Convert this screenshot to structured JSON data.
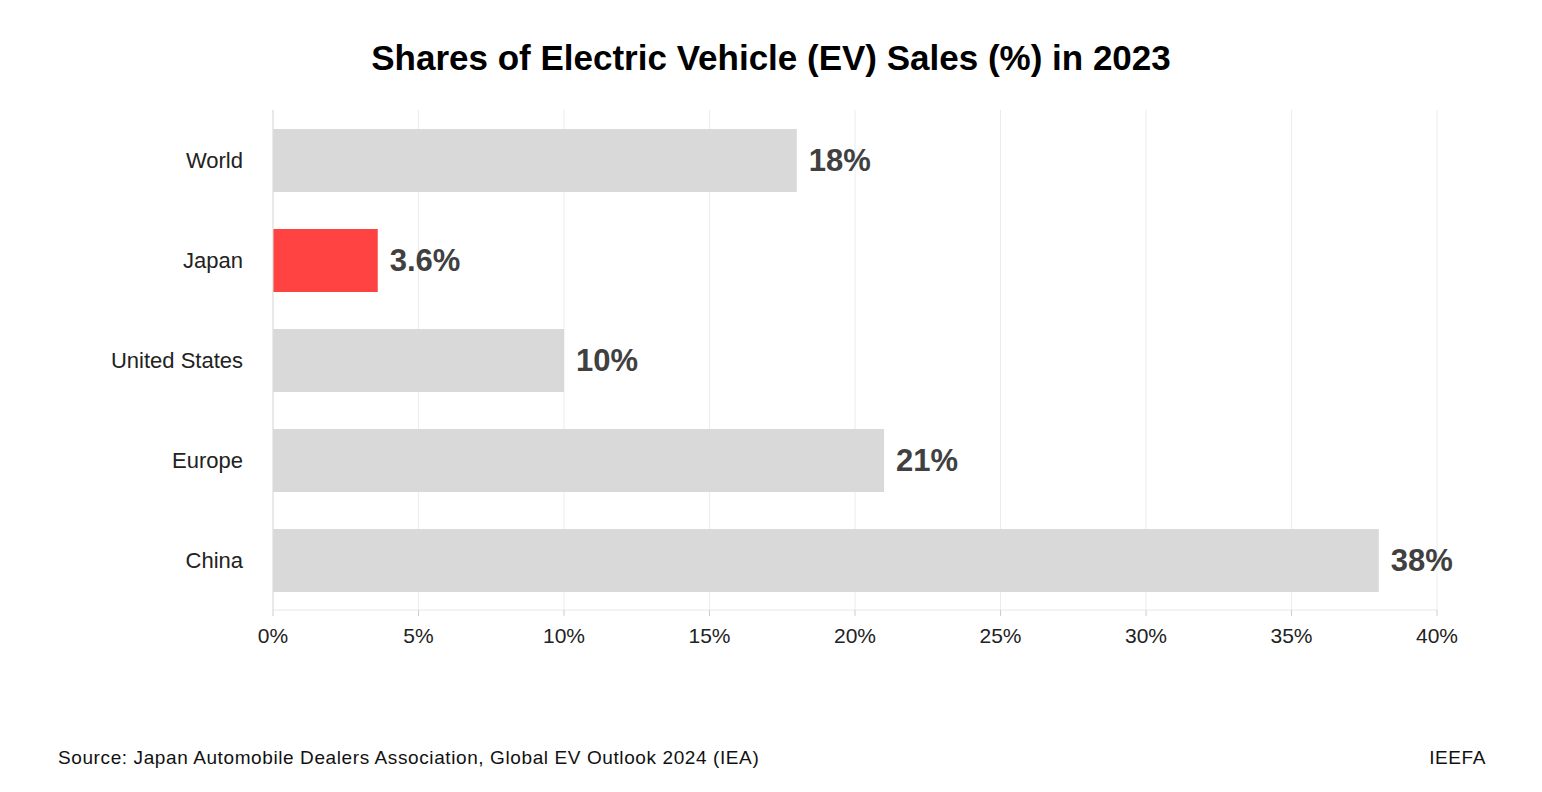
{
  "chart_data": {
    "type": "bar",
    "orientation": "horizontal",
    "title": "Shares of Electric Vehicle (EV) Sales (%) in 2023",
    "categories": [
      "World",
      "Japan",
      "United States",
      "Europe",
      "China"
    ],
    "values": [
      18,
      3.6,
      10,
      21,
      38
    ],
    "value_labels": [
      "18%",
      "3.6%",
      "10%",
      "21%",
      "38%"
    ],
    "colors": [
      "#d9d9d9",
      "#ff4343",
      "#d9d9d9",
      "#d9d9d9",
      "#d9d9d9"
    ],
    "xlim": [
      0,
      40
    ],
    "xticks": [
      {
        "value": 0,
        "label": "0%"
      },
      {
        "value": 5,
        "label": "5%"
      },
      {
        "value": 10,
        "label": "10%"
      },
      {
        "value": 15,
        "label": "15%"
      },
      {
        "value": 20,
        "label": "20%"
      },
      {
        "value": 25,
        "label": "25%"
      },
      {
        "value": 30,
        "label": "30%"
      },
      {
        "value": 35,
        "label": "35%"
      },
      {
        "value": 40,
        "label": "40%"
      }
    ],
    "grid": true,
    "data_labels": true,
    "annotations": [
      "Source: Japan Automobile Dealers Association, Global EV Outlook 2024 (IEA)",
      "IEEFA"
    ]
  }
}
